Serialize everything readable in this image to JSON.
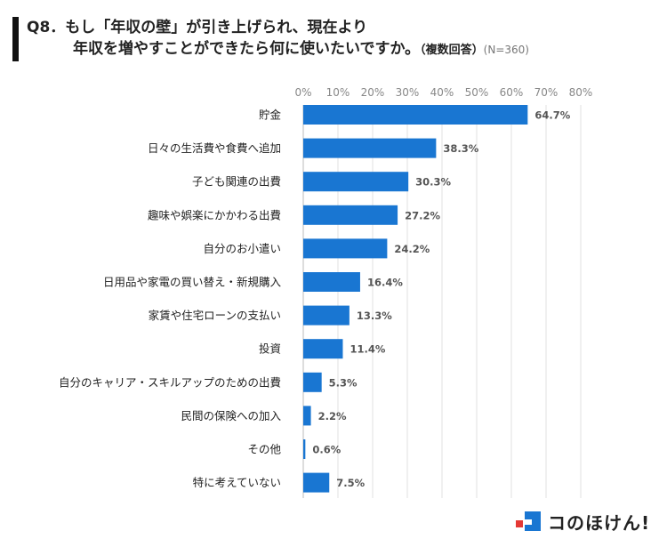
{
  "title": {
    "line1": "Q8．もし「年収の壁」が引き上げられ、現在より",
    "line2": "年収を増やすことができたら何に使いたいですか。",
    "note": "（複数回答）",
    "sample": "(N=360)"
  },
  "chart_data": {
    "type": "bar",
    "orientation": "horizontal",
    "categories": [
      "貯金",
      "日々の生活費や食費へ追加",
      "子ども関連の出費",
      "趣味や娯楽にかかわる出費",
      "自分のお小遣い",
      "日用品や家電の買い替え・新規購入",
      "家賃や住宅ローンの支払い",
      "投資",
      "自分のキャリア・スキルアップのための出費",
      "民間の保険への加入",
      "その他",
      "特に考えていない"
    ],
    "values": [
      64.7,
      38.3,
      30.3,
      27.2,
      24.2,
      16.4,
      13.3,
      11.4,
      5.3,
      2.2,
      0.6,
      7.5
    ],
    "value_labels": [
      "64.7%",
      "38.3%",
      "30.3%",
      "27.2%",
      "24.2%",
      "16.4%",
      "13.3%",
      "11.4%",
      "5.3%",
      "2.2%",
      "0.6%",
      "7.5%"
    ],
    "xlim": [
      0,
      80
    ],
    "ticks": [
      0,
      10,
      20,
      30,
      40,
      50,
      60,
      70,
      80
    ],
    "tick_labels": [
      "0%",
      "10%",
      "20%",
      "30%",
      "40%",
      "50%",
      "60%",
      "70%",
      "80%"
    ],
    "bar_color": "#1976d2",
    "grid": true,
    "tick_position": "top"
  },
  "logo": {
    "text": "コのほけん!",
    "colors": [
      "#1976d2",
      "#e53935"
    ]
  }
}
